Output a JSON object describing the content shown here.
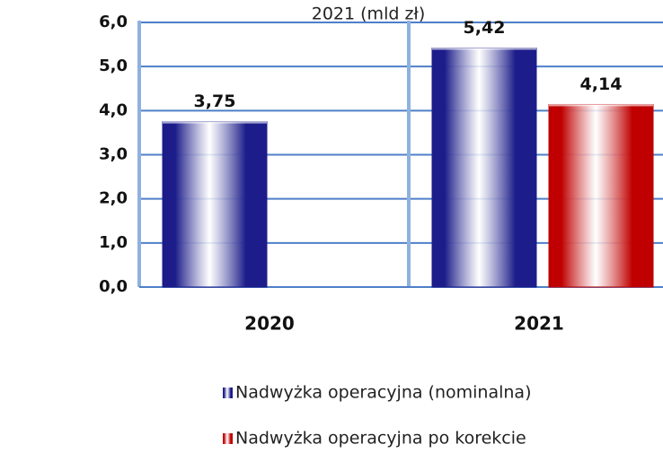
{
  "chart_data": {
    "type": "bar",
    "title": "2021 (mld zł)",
    "categories": [
      "2020",
      "2021"
    ],
    "series": [
      {
        "name": "Nadwyżka operacyjna (nominalna)",
        "color": "#1c1c8a",
        "values": [
          3.75,
          5.42
        ],
        "value_labels": [
          "3,75",
          "5,42"
        ]
      },
      {
        "name": "Nadwyżka operacyjna po korekcie",
        "color": "#c00000",
        "values": [
          null,
          4.14
        ],
        "value_labels": [
          null,
          "4,14"
        ]
      }
    ],
    "ylim": [
      0,
      6
    ],
    "yticks": [
      {
        "value": 0,
        "label": "0,0"
      },
      {
        "value": 1,
        "label": "1,0"
      },
      {
        "value": 2,
        "label": "2,0"
      },
      {
        "value": 3,
        "label": "3,0"
      },
      {
        "value": 4,
        "label": "4,0"
      },
      {
        "value": 5,
        "label": "5,0"
      },
      {
        "value": 6,
        "label": "6,0"
      }
    ],
    "grid": true
  }
}
